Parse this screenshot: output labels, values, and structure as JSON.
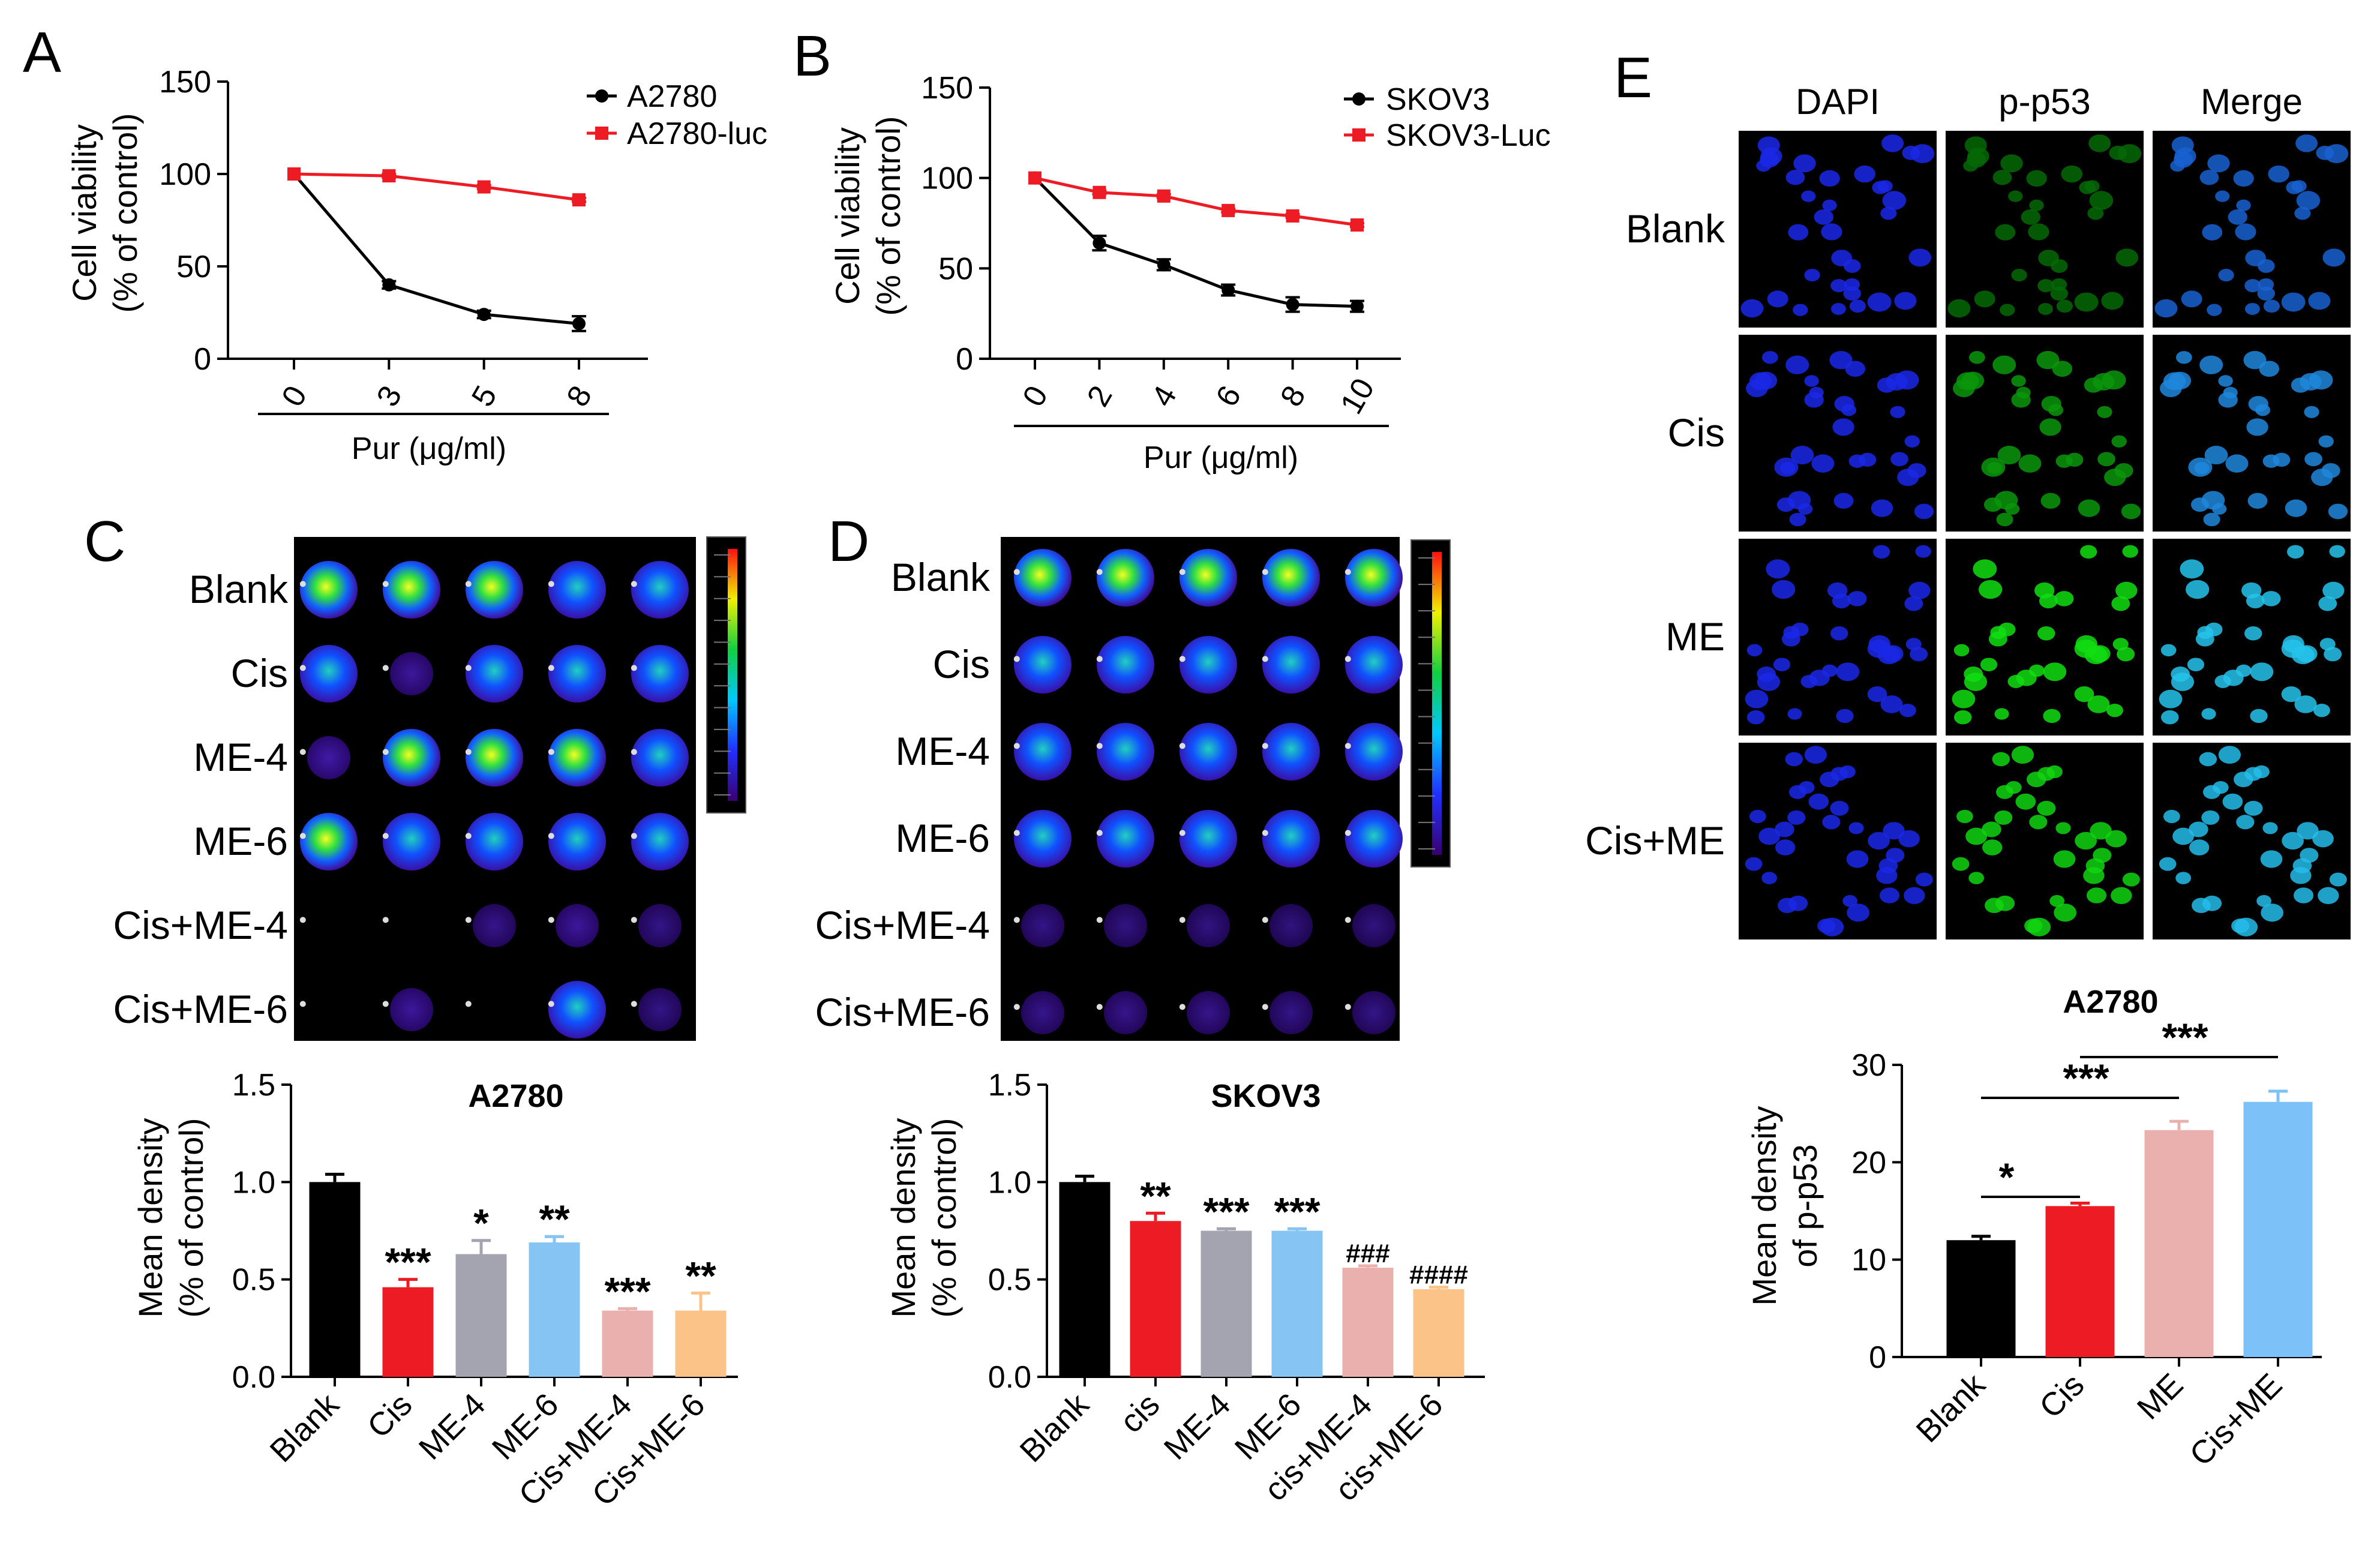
{
  "panel_labels": [
    "A",
    "B",
    "C",
    "D",
    "E"
  ],
  "colors": {
    "black": "#000000",
    "red": "#ed1c24",
    "gray": "#a4a4b0",
    "blue": "#86c4f4",
    "pink": "#eab0ae",
    "orange": "#fbc388",
    "lightblue": "#7cc2f8"
  },
  "chart_data": [
    {
      "id": "A",
      "type": "line",
      "title": "",
      "xlabel": "Pur (μg/ml)",
      "ylabel_lines": [
        "Cell viability",
        "(% of control)"
      ],
      "ylim": [
        0,
        150
      ],
      "yticks": [
        "0",
        "50",
        "100",
        "150"
      ],
      "x": [
        "0",
        "3",
        "5",
        "8"
      ],
      "series": [
        {
          "name": "A2780",
          "color": "#000000",
          "marker": "circle",
          "values": [
            100,
            40,
            24,
            19
          ],
          "errors": [
            0,
            2,
            2,
            4
          ]
        },
        {
          "name": "A2780-luc",
          "color": "#ed1c24",
          "marker": "square",
          "values": [
            100,
            99,
            93,
            86
          ],
          "errors": [
            0,
            1,
            1,
            1
          ]
        }
      ]
    },
    {
      "id": "B",
      "type": "line",
      "title": "",
      "xlabel": "Pur (μg/ml)",
      "ylabel_lines": [
        "Cell viability",
        "(% of control)"
      ],
      "ylim": [
        0,
        150
      ],
      "yticks": [
        "0",
        "50",
        "100",
        "150"
      ],
      "x": [
        "0",
        "2",
        "4",
        "6",
        "8",
        "10"
      ],
      "series": [
        {
          "name": "SKOV3",
          "color": "#000000",
          "marker": "circle",
          "values": [
            100,
            64,
            52,
            38,
            30,
            29
          ],
          "errors": [
            0,
            4,
            3,
            3,
            4,
            3
          ]
        },
        {
          "name": "SKOV3-Luc",
          "color": "#ed1c24",
          "marker": "square",
          "values": [
            100,
            92,
            90,
            82,
            79,
            74
          ],
          "errors": [
            0,
            1,
            1,
            1,
            1,
            1
          ]
        }
      ]
    },
    {
      "id": "C",
      "type": "bar",
      "title": "A2780",
      "ylabel_lines": [
        "Mean density",
        "(% of control)"
      ],
      "ylim": [
        0,
        1.5
      ],
      "yticks": [
        "0.0",
        "0.5",
        "1.0",
        "1.5"
      ],
      "categories": [
        "Blank",
        "Cis",
        "ME-4",
        "ME-6",
        "Cis+ME-4",
        "Cis+ME-6"
      ],
      "values": [
        1.0,
        0.46,
        0.63,
        0.69,
        0.34,
        0.34
      ],
      "errors": [
        0.04,
        0.04,
        0.07,
        0.03,
        0.01,
        0.09
      ],
      "colors": [
        "#000000",
        "#ed1c24",
        "#a4a4b0",
        "#86c4f4",
        "#eab0ae",
        "#fbc388"
      ],
      "annotations": [
        "",
        "***",
        "*",
        "**",
        "***",
        "**"
      ]
    },
    {
      "id": "D",
      "type": "bar",
      "title": "SKOV3",
      "ylabel_lines": [
        "Mean density",
        "(% of control)"
      ],
      "ylim": [
        0,
        1.5
      ],
      "yticks": [
        "0.0",
        "0.5",
        "1.0",
        "1.5"
      ],
      "categories": [
        "Blank",
        "cis",
        "ME-4",
        "ME-6",
        "cis+ME-4",
        "cis+ME-6"
      ],
      "values": [
        1.0,
        0.8,
        0.75,
        0.75,
        0.56,
        0.45
      ],
      "errors": [
        0.03,
        0.04,
        0.01,
        0.01,
        0.01,
        0.01
      ],
      "colors": [
        "#000000",
        "#ed1c24",
        "#a4a4b0",
        "#86c4f4",
        "#eab0ae",
        "#fbc388"
      ],
      "annotations": [
        "",
        "**",
        "***",
        "***",
        "###",
        "####"
      ]
    },
    {
      "id": "E",
      "type": "bar",
      "title": "A2780",
      "ylabel_lines": [
        "Mean density",
        "of p-p53"
      ],
      "ylim": [
        0,
        30
      ],
      "yticks": [
        "0",
        "10",
        "20",
        "30"
      ],
      "categories": [
        "Blank",
        "Cis",
        "ME",
        "Cis+ME"
      ],
      "values": [
        12,
        15.5,
        23.3,
        26.2
      ],
      "errors": [
        0.4,
        0.3,
        0.9,
        1.1
      ],
      "colors": [
        "#000000",
        "#ed1c24",
        "#eab0ae",
        "#7cc2f8"
      ],
      "significance": [
        {
          "from": 0,
          "to": 1,
          "label": "*"
        },
        {
          "from": 0,
          "to": 2,
          "label": "***"
        },
        {
          "from": 1,
          "to": 3,
          "label": "***"
        }
      ]
    }
  ],
  "imaging_C": {
    "rows": [
      "Blank",
      "Cis",
      "ME-4",
      "ME-6",
      "Cis+ME-4",
      "Cis+ME-6"
    ],
    "intensity": [
      [
        0.85,
        0.7,
        0.9,
        0.5,
        0.55
      ],
      [
        0.6,
        0.2,
        0.3,
        0.45,
        0.3
      ],
      [
        0.25,
        0.75,
        0.7,
        0.65,
        0.6
      ],
      [
        0.65,
        0.6,
        0.6,
        0.55,
        0.55
      ],
      [
        0.0,
        0.0,
        0.12,
        0.2,
        0.1
      ],
      [
        0.05,
        0.2,
        0.0,
        0.45,
        0.1
      ]
    ]
  },
  "imaging_D": {
    "rows": [
      "Blank",
      "Cis",
      "ME-4",
      "ME-6",
      "Cis+ME-4",
      "Cis+ME-6"
    ],
    "intensity": [
      [
        0.7,
        0.9,
        0.8,
        0.75,
        0.7
      ],
      [
        0.5,
        0.45,
        0.45,
        0.5,
        0.5
      ],
      [
        0.45,
        0.35,
        0.35,
        0.4,
        0.35
      ],
      [
        0.45,
        0.45,
        0.4,
        0.45,
        0.35
      ],
      [
        0.1,
        0.08,
        0.08,
        0.06,
        0.06
      ],
      [
        0.12,
        0.12,
        0.12,
        0.1,
        0.1
      ]
    ]
  },
  "micrograph_E": {
    "columns": [
      "DAPI",
      "p-p53",
      "Merge"
    ],
    "rows": [
      "Blank",
      "Cis",
      "ME",
      "Cis+ME"
    ],
    "green_level": [
      0.25,
      0.5,
      0.9,
      0.85
    ]
  }
}
